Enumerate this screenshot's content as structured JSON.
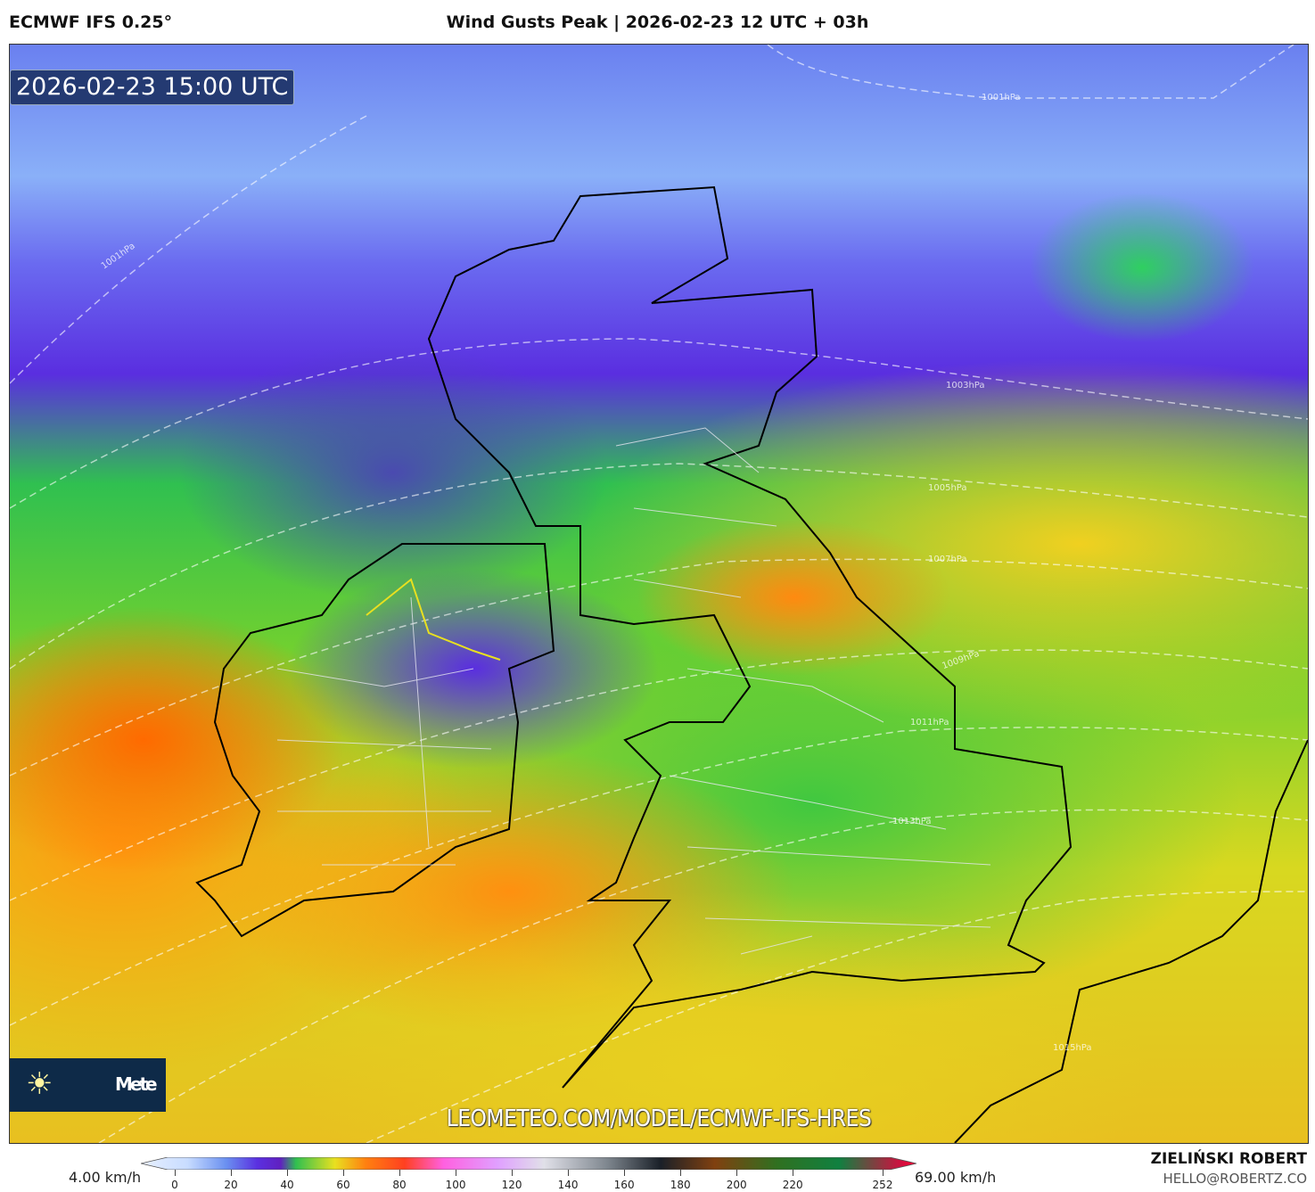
{
  "header": {
    "model": "ECMWF IFS 0.25°",
    "title": "Wind Gusts Peak | 2026-02-23 12 UTC + 03h"
  },
  "map": {
    "valid_time": "2026-02-23 15:00 UTC",
    "watermark": "LEOMETEO.COM/MODEL/ECMWF-IFS-HRES",
    "logo_text": "LeoMeteo",
    "logo_icon": "sun-icon",
    "isobars": [
      "1001hPa",
      "1001hPa",
      "1003hPa",
      "1005hPa",
      "1007hPa",
      "1009hPa",
      "1011hPa",
      "1013hPa",
      "1015hPa"
    ]
  },
  "legend": {
    "min_label": "4.00 km/h",
    "max_label": "69.00 km/h",
    "ticks": [
      "0",
      "20",
      "40",
      "60",
      "80",
      "100",
      "120",
      "140",
      "160",
      "180",
      "200",
      "220",
      "252"
    ],
    "colors": [
      "#d8e8ff",
      "#8ab0f8",
      "#5a50f0",
      "#6020d0",
      "#30c050",
      "#e8e020",
      "#ff8010",
      "#ff3030",
      "#ff60e0",
      "#e0a0ff",
      "#e0e0e0",
      "#808890",
      "#202830",
      "#804010",
      "#306020",
      "#108040",
      "#d01040"
    ]
  },
  "footer": {
    "author": "ZIELIŃSKI ROBERT",
    "email": "HELLO@ROBERTZ.CO"
  }
}
